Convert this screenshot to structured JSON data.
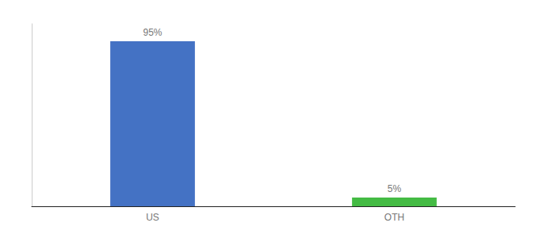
{
  "chart_data": {
    "type": "bar",
    "categories": [
      "US",
      "OTH"
    ],
    "values": [
      95,
      5
    ],
    "value_labels": [
      "95%",
      "5%"
    ],
    "colors": [
      "#4472c4",
      "#44bb44"
    ],
    "ylim": [
      0,
      105
    ],
    "grid": false,
    "data_labels": true,
    "tick_labels": "x"
  }
}
